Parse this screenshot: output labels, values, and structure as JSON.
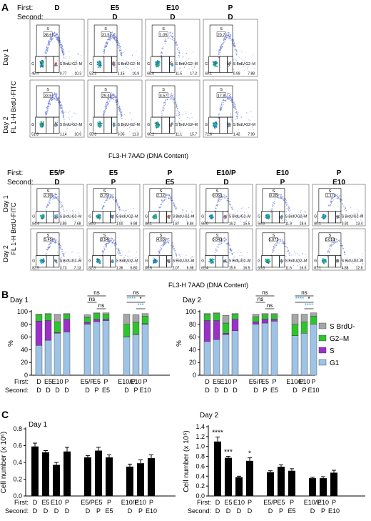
{
  "panels": {
    "A": "A",
    "B": "B",
    "C": "C"
  },
  "row_labels": {
    "first": "First:",
    "second": "Second:"
  },
  "day_labels": [
    "Day 1",
    "Day 2"
  ],
  "flow": {
    "y_axis_label": "FL 1-H BrdU-FITC",
    "x_axis_label": "FL3-H 7AAD (DNA Content)",
    "gate_labels": {
      "s": "S",
      "g1": "G",
      "brdu": "S BrdU-",
      "g2m": "G2–M"
    },
    "top_set": {
      "columns": [
        {
          "first": "D",
          "second": ""
        },
        {
          "first": "E5",
          "second": "D"
        },
        {
          "first": "E10",
          "second": "D"
        },
        {
          "first": "P",
          "second": "D"
        }
      ],
      "day1": [
        {
          "s": "38.6",
          "g1": "45.4",
          "brdu": "0.77",
          "g2m": "10.3"
        },
        {
          "s": "31.5",
          "g1": "53.3",
          "brdu": "1.15",
          "g2m": "10.9"
        },
        {
          "s": "1.05",
          "g1": "68.0",
          "brdu": "11.5",
          "g2m": "17.2"
        },
        {
          "s": "20.7",
          "g1": "69.1",
          "brdu": "0.99",
          "g2m": "7.88"
        }
      ],
      "day2": [
        {
          "s": "33.6",
          "g1": "51.8",
          "brdu": "1.14",
          "g2m": "10.9"
        },
        {
          "s": "29.4",
          "g1": "55.3",
          "brdu": "0.95",
          "g2m": "11.3"
        },
        {
          "s": "4.57",
          "g1": "66.2",
          "brdu": "11.1",
          "g2m": "15.7"
        },
        {
          "s": "17.8",
          "g1": "71.6",
          "brdu": "1.42",
          "g2m": "7.99"
        }
      ]
    },
    "bottom_set": {
      "columns": [
        {
          "first": "E5/P",
          "second": "D"
        },
        {
          "first": "E5",
          "second": "P"
        },
        {
          "first": "P",
          "second": "E5"
        },
        {
          "first": "E10/P",
          "second": "D"
        },
        {
          "first": "E10",
          "second": "P"
        },
        {
          "first": "P",
          "second": "E10"
        }
      ],
      "day1": [
        {
          "s": "2.90",
          "g1": "84.4",
          "brdu": "3.80",
          "g2m": "7.68"
        },
        {
          "s": "3.79",
          "g1": "84.0",
          "brdu": "1.00",
          "g2m": "9.98"
        },
        {
          "s": "2.12",
          "g1": "86.1",
          "brdu": "1.87",
          "g2m": "8.84"
        },
        {
          "s": "0.061",
          "g1": "66.0",
          "brdu": "16.2",
          "g2m": "15.5"
        },
        {
          "s": "0.28",
          "g1": "66.6",
          "brdu": "11.9",
          "g2m": "18.6"
        },
        {
          "s": "1.17",
          "g1": "80.1",
          "brdu": "3.92",
          "g2m": "13.4"
        }
      ],
      "day2": [
        {
          "s": "5.45",
          "g1": "82.5",
          "brdu": "3.73",
          "g2m": "7.13"
        },
        {
          "s": "8.54",
          "g1": "82.3",
          "brdu": "1.36",
          "g2m": "6.80"
        },
        {
          "s": "4.60",
          "g1": "85.5",
          "brdu": "2.07",
          "g2m": "6.98"
        },
        {
          "s": "0.043",
          "g1": "65.4",
          "brdu": "15.9",
          "g2m": "16.5"
        },
        {
          "s": "0.071",
          "g1": "69.8",
          "brdu": "11.5",
          "g2m": "16.5"
        },
        {
          "s": "0.018",
          "g1": "81.1",
          "brdu": "4.88",
          "g2m": "12.8"
        }
      ]
    }
  },
  "chart_data": [
    {
      "type": "bar",
      "stacked": true,
      "title": "Day 1",
      "ylabel": "%",
      "ylim": [
        0,
        100
      ],
      "yticks": [
        0,
        20,
        40,
        60,
        80,
        100
      ],
      "categories_first": [
        "D",
        "E5",
        "E10",
        "P",
        "E5/P",
        "E5",
        "P",
        "E10/P",
        "E10",
        "P"
      ],
      "categories_second": [
        "D",
        "D",
        "D",
        "D",
        "D",
        "P",
        "E5",
        "D",
        "P",
        "E10"
      ],
      "groups": [
        [
          0,
          1,
          2,
          3
        ],
        [
          4,
          5,
          6
        ],
        [
          7,
          8,
          9
        ]
      ],
      "series": [
        {
          "name": "G1",
          "color": "#9dc3e6",
          "values": [
            47,
            55,
            66,
            68,
            80,
            84,
            86,
            60,
            64,
            80
          ]
        },
        {
          "name": "S",
          "color": "#9a30c8",
          "values": [
            38,
            31,
            1,
            20,
            3,
            4,
            2,
            0.1,
            0.3,
            1
          ]
        },
        {
          "name": "G2–M",
          "color": "#2ec42e",
          "values": [
            10,
            10,
            17,
            8,
            8,
            9,
            8,
            20,
            19,
            12
          ]
        },
        {
          "name": "S BrdU-",
          "color": "#a6a6a6",
          "values": [
            1,
            1,
            12,
            1,
            4,
            1,
            2,
            16,
            12,
            4
          ]
        }
      ],
      "significance": [
        {
          "text": "ns",
          "from": 4,
          "to": 5,
          "level": 1
        },
        {
          "text": "ns",
          "from": 5,
          "to": 6,
          "level": 0
        },
        {
          "text": "ns",
          "from": 4,
          "to": 6,
          "level": 2
        },
        {
          "text": "ns",
          "from": 7,
          "to": 9,
          "level": 2
        },
        {
          "text": "****",
          "from": 7,
          "to": 8,
          "level": 1,
          "color": "#3fa7e0"
        },
        {
          "text": "*",
          "from": 8,
          "to": 9,
          "level": 1
        },
        {
          "text": "***",
          "from": 8,
          "to": 9,
          "level": 0,
          "color": "#3fa7e0"
        }
      ]
    },
    {
      "type": "bar",
      "stacked": true,
      "title": "Day 2",
      "ylabel": "%",
      "ylim": [
        0,
        100
      ],
      "yticks": [
        0,
        20,
        40,
        60,
        80,
        100
      ],
      "categories_first": [
        "D",
        "E5",
        "E10",
        "P",
        "E5/P",
        "E5",
        "P",
        "E10/P",
        "E10",
        "P"
      ],
      "categories_second": [
        "D",
        "D",
        "D",
        "D",
        "D",
        "P",
        "E5",
        "D",
        "P",
        "E10"
      ],
      "groups": [
        [
          0,
          1,
          2,
          3
        ],
        [
          4,
          5,
          6
        ],
        [
          7,
          8,
          9
        ]
      ],
      "series": [
        {
          "name": "G1",
          "color": "#9dc3e6",
          "values": [
            53,
            56,
            64,
            70,
            80,
            82,
            85,
            62,
            66,
            80
          ]
        },
        {
          "name": "S",
          "color": "#9a30c8",
          "values": [
            33,
            30,
            2,
            18,
            4,
            6,
            3,
            0.1,
            0.1,
            0.1
          ]
        },
        {
          "name": "G2–M",
          "color": "#2ec42e",
          "values": [
            10,
            11,
            16,
            8,
            8,
            7,
            7,
            18,
            18,
            13
          ]
        },
        {
          "name": "S BrdU-",
          "color": "#a6a6a6",
          "values": [
            1,
            1,
            12,
            1,
            4,
            2,
            2,
            16,
            12,
            5
          ]
        }
      ],
      "significance": [
        {
          "text": "ns",
          "from": 4,
          "to": 5,
          "level": 1
        },
        {
          "text": "ns",
          "from": 5,
          "to": 6,
          "level": 0
        },
        {
          "text": "ns",
          "from": 4,
          "to": 6,
          "level": 2
        },
        {
          "text": "ns",
          "from": 7,
          "to": 9,
          "level": 2
        },
        {
          "text": "****",
          "from": 7,
          "to": 8,
          "level": 1,
          "color": "#3fa7e0"
        },
        {
          "text": "*",
          "from": 8,
          "to": 9,
          "level": 1
        },
        {
          "text": "****",
          "from": 8,
          "to": 9,
          "level": 0,
          "color": "#3fa7e0"
        }
      ]
    },
    {
      "type": "bar",
      "title": "Day 1",
      "ylabel": "Cell number (x 10⁶)",
      "ylim": [
        0,
        0.8
      ],
      "yticks": [
        "0.0",
        "0.2",
        "0.4",
        "0.6",
        "0.8"
      ],
      "categories_first": [
        "D",
        "E5",
        "E10",
        "P",
        "E5/P",
        "E5",
        "P",
        "E10/P",
        "E10",
        "P"
      ],
      "categories_second": [
        "D",
        "D",
        "D",
        "D",
        "D",
        "P",
        "E5",
        "D",
        "P",
        "E10"
      ],
      "groups": [
        [
          0,
          1,
          2,
          3
        ],
        [
          4,
          5,
          6
        ],
        [
          7,
          8,
          9
        ]
      ],
      "values": [
        0.59,
        0.52,
        0.37,
        0.53,
        0.46,
        0.54,
        0.46,
        0.35,
        0.39,
        0.45
      ],
      "errors": [
        0.04,
        0.02,
        0.03,
        0.05,
        0.02,
        0.04,
        0.03,
        0.03,
        0.04,
        0.04
      ],
      "annotations": []
    },
    {
      "type": "bar",
      "title": "Day 2",
      "ylabel": "Cell number (x 10⁶)",
      "ylim": [
        0,
        1.4
      ],
      "yticks": [
        "0.0",
        "0.2",
        "0.4",
        "0.6",
        "0.8",
        "1.0",
        "1.2",
        "1.4"
      ],
      "categories_first": [
        "D",
        "E5",
        "E10",
        "P",
        "E5/P",
        "E5",
        "P",
        "E10/P",
        "E10",
        "P"
      ],
      "categories_second": [
        "D",
        "D",
        "D",
        "D",
        "D",
        "P",
        "E5",
        "D",
        "P",
        "E10"
      ],
      "groups": [
        [
          0,
          1,
          2,
          3
        ],
        [
          4,
          5,
          6
        ],
        [
          7,
          8,
          9
        ]
      ],
      "values": [
        1.1,
        0.77,
        0.38,
        0.71,
        0.48,
        0.59,
        0.51,
        0.36,
        0.36,
        0.47
      ],
      "errors": [
        0.09,
        0.03,
        0.02,
        0.06,
        0.03,
        0.04,
        0.04,
        0.02,
        0.03,
        0.05
      ],
      "annotations": [
        {
          "index": 0,
          "text": "****"
        },
        {
          "index": 1,
          "text": "***"
        },
        {
          "index": 3,
          "text": "*"
        }
      ]
    }
  ]
}
